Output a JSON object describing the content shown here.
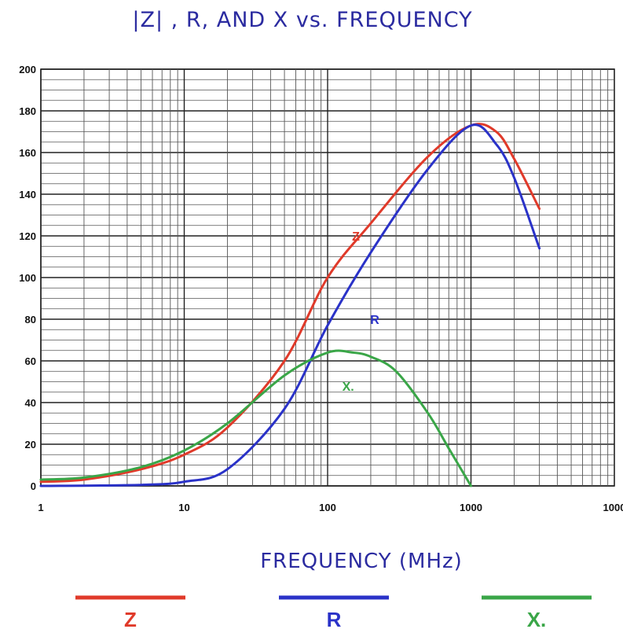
{
  "chart_data": {
    "type": "line",
    "title": "|Z| , R, AND X vs. FREQUENCY",
    "xlabel": "FREQUENCY (MHz)",
    "ylabel": "",
    "x_scale": "log",
    "xlim": [
      1,
      10000
    ],
    "ylim": [
      0,
      200
    ],
    "x_ticks": [
      "1",
      "10",
      "100",
      "1000",
      "1000"
    ],
    "y_ticks": [
      "0",
      "20",
      "40",
      "60",
      "80",
      "100",
      "120",
      "140",
      "160",
      "180",
      "200"
    ],
    "grid": true,
    "legend_position": "bottom",
    "series": [
      {
        "name": "Z",
        "inline_label": "Z",
        "color": "#e03a2a",
        "points": [
          [
            1,
            2
          ],
          [
            2,
            3
          ],
          [
            5,
            8
          ],
          [
            10,
            15
          ],
          [
            20,
            28
          ],
          [
            50,
            60
          ],
          [
            100,
            100
          ],
          [
            200,
            126
          ],
          [
            500,
            158
          ],
          [
            1000,
            173
          ],
          [
            1500,
            170
          ],
          [
            2000,
            157
          ],
          [
            3000,
            133
          ]
        ]
      },
      {
        "name": "R",
        "inline_label": "R",
        "color": "#2a32c8",
        "points": [
          [
            1,
            0
          ],
          [
            5,
            0.5
          ],
          [
            10,
            2
          ],
          [
            20,
            8
          ],
          [
            50,
            37
          ],
          [
            100,
            77
          ],
          [
            200,
            112
          ],
          [
            500,
            152
          ],
          [
            1000,
            173
          ],
          [
            1500,
            164
          ],
          [
            2000,
            148
          ],
          [
            3000,
            114
          ]
        ]
      },
      {
        "name": "X.",
        "inline_label": "X.",
        "color": "#3aa648",
        "points": [
          [
            1,
            3
          ],
          [
            2,
            4
          ],
          [
            5,
            9
          ],
          [
            10,
            17
          ],
          [
            20,
            30
          ],
          [
            50,
            53
          ],
          [
            100,
            64
          ],
          [
            150,
            64
          ],
          [
            200,
            62
          ],
          [
            300,
            55
          ],
          [
            500,
            35
          ],
          [
            700,
            18
          ],
          [
            1000,
            0
          ]
        ]
      }
    ]
  }
}
